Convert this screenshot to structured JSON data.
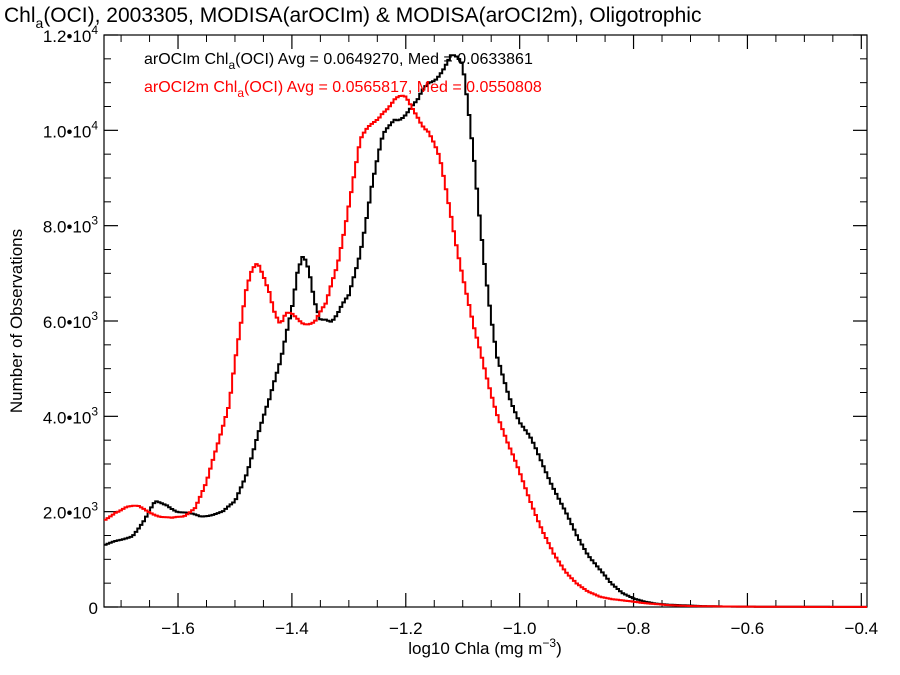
{
  "chart_data": {
    "type": "line",
    "title": {
      "prefix": "Chl",
      "sub": "a",
      "suffix": "(OCI), 2003305, MODISA(arOCIm) & MODISA(arOCI2m), Oligotrophic"
    },
    "xlabel": {
      "prefix": "log10 Chla (mg m",
      "sup": "−3",
      "suffix": ")"
    },
    "ylabel": "Number of Observations",
    "xlim": [
      -1.73,
      -0.39
    ],
    "ylim": [
      0,
      12000
    ],
    "xticks": [
      -1.6,
      -1.4,
      -1.2,
      -1.0,
      -0.8,
      -0.6,
      -0.4
    ],
    "xtick_labels": [
      "−1.6",
      "−1.4",
      "−1.2",
      "−1.0",
      "−0.8",
      "−0.6",
      "−0.4"
    ],
    "yticks": [
      {
        "value": 0,
        "mant": "0",
        "exp": ""
      },
      {
        "value": 2000,
        "mant": "2.0•10",
        "exp": "3"
      },
      {
        "value": 4000,
        "mant": "4.0•10",
        "exp": "3"
      },
      {
        "value": 6000,
        "mant": "6.0•10",
        "exp": "3"
      },
      {
        "value": 8000,
        "mant": "8.0•10",
        "exp": "3"
      },
      {
        "value": 10000,
        "mant": "1.0•10",
        "exp": "4"
      },
      {
        "value": 12000,
        "mant": "1.2•10",
        "exp": "4"
      }
    ],
    "legend": [
      {
        "name_prefix": "arOCIm Chl",
        "name_sub": "a",
        "name_suffix": "(OCI) Avg = 0.0649270, Med = 0.0633861",
        "color": "#000000"
      },
      {
        "name_prefix": "arOCI2m Chl",
        "name_sub": "a",
        "name_suffix": "(OCI) Avg = 0.0565817, Med = 0.0550808",
        "color": "#ff0000"
      }
    ],
    "series": [
      {
        "color": "#000000",
        "x": [
          -1.73,
          -1.7,
          -1.68,
          -1.66,
          -1.64,
          -1.62,
          -1.6,
          -1.58,
          -1.56,
          -1.54,
          -1.52,
          -1.5,
          -1.48,
          -1.46,
          -1.44,
          -1.42,
          -1.41,
          -1.4,
          -1.39,
          -1.38,
          -1.37,
          -1.36,
          -1.35,
          -1.34,
          -1.33,
          -1.32,
          -1.3,
          -1.28,
          -1.26,
          -1.24,
          -1.22,
          -1.2,
          -1.18,
          -1.16,
          -1.14,
          -1.12,
          -1.1,
          -1.09,
          -1.08,
          -1.07,
          -1.06,
          -1.05,
          -1.04,
          -1.02,
          -1.0,
          -0.98,
          -0.96,
          -0.94,
          -0.92,
          -0.9,
          -0.88,
          -0.86,
          -0.84,
          -0.82,
          -0.8,
          -0.78,
          -0.76,
          -0.74,
          -0.72,
          -0.7,
          -0.68,
          -0.66,
          -0.64,
          -0.6,
          -0.55,
          -0.5,
          -0.45,
          -0.39
        ],
        "y": [
          1300,
          1400,
          1500,
          1800,
          2200,
          2150,
          2000,
          1950,
          1900,
          1950,
          2000,
          2200,
          2800,
          3600,
          4300,
          5200,
          5800,
          6300,
          7000,
          7300,
          7000,
          6400,
          6100,
          6100,
          6000,
          6100,
          6500,
          7500,
          8800,
          9800,
          10300,
          10400,
          10500,
          11000,
          11300,
          11500,
          11300,
          10500,
          9500,
          8200,
          7000,
          6000,
          5200,
          4500,
          3900,
          3500,
          3000,
          2500,
          2000,
          1500,
          1100,
          800,
          500,
          300,
          180,
          110,
          70,
          50,
          40,
          30,
          20,
          15,
          10,
          8,
          5,
          4,
          3,
          2
        ]
      },
      {
        "color": "#ff0000",
        "x": [
          -1.73,
          -1.71,
          -1.69,
          -1.67,
          -1.65,
          -1.63,
          -1.61,
          -1.59,
          -1.57,
          -1.55,
          -1.53,
          -1.51,
          -1.5,
          -1.49,
          -1.48,
          -1.47,
          -1.46,
          -1.45,
          -1.44,
          -1.43,
          -1.42,
          -1.41,
          -1.4,
          -1.38,
          -1.36,
          -1.34,
          -1.32,
          -1.3,
          -1.28,
          -1.26,
          -1.24,
          -1.22,
          -1.2,
          -1.18,
          -1.16,
          -1.14,
          -1.12,
          -1.1,
          -1.08,
          -1.06,
          -1.04,
          -1.02,
          -1.0,
          -0.98,
          -0.96,
          -0.94,
          -0.92,
          -0.9,
          -0.88,
          -0.86,
          -0.84,
          -0.82,
          -0.8,
          -0.78,
          -0.76,
          -0.74,
          -0.72,
          -0.7,
          -0.65,
          -0.6,
          -0.55,
          -0.5,
          -0.45,
          -0.39
        ],
        "y": [
          1800,
          2000,
          2100,
          2100,
          2000,
          1900,
          1850,
          1900,
          2100,
          2600,
          3400,
          4300,
          5200,
          5900,
          6600,
          7000,
          7200,
          7000,
          6700,
          6200,
          5900,
          6100,
          6100,
          6000,
          6000,
          6300,
          7200,
          8500,
          9700,
          10100,
          10500,
          10600,
          10600,
          10400,
          10000,
          9300,
          8200,
          7000,
          5800,
          4900,
          4100,
          3400,
          2800,
          2200,
          1600,
          1100,
          750,
          500,
          320,
          220,
          170,
          140,
          110,
          80,
          60,
          40,
          30,
          20,
          12,
          8,
          5,
          3,
          2,
          1
        ]
      }
    ]
  }
}
